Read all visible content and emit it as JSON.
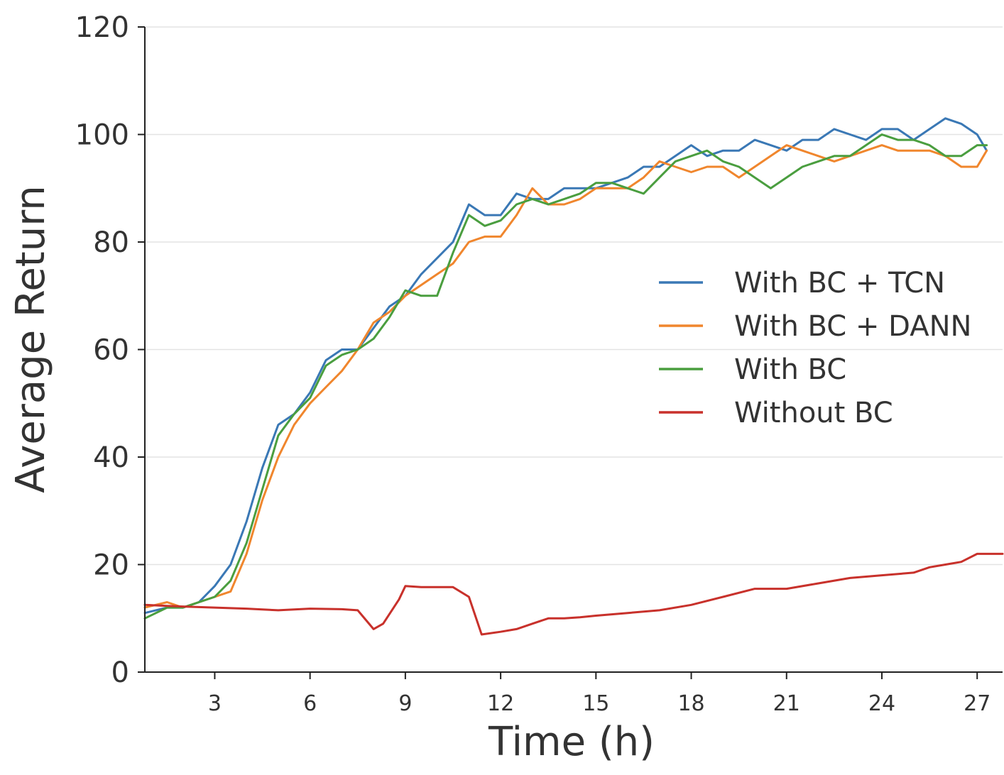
{
  "chart_data": {
    "type": "line",
    "title": "",
    "xlabel": "Time (h)",
    "ylabel": "Average Return",
    "xlim": [
      0.8,
      27.8
    ],
    "ylim": [
      0,
      120
    ],
    "xticks": [
      3,
      6,
      9,
      12,
      15,
      18,
      21,
      24,
      27
    ],
    "xtick_labels": [
      "3",
      "6",
      "9",
      "12",
      "15",
      "18",
      "21",
      "24",
      "27"
    ],
    "yticks": [
      0,
      20,
      40,
      60,
      80,
      100,
      120
    ],
    "ytick_labels": [
      "0",
      "20",
      "40",
      "60",
      "80",
      "100",
      "120"
    ],
    "grid": "horizontal",
    "legend_position": "center-right",
    "series": [
      {
        "name": "With BC + TCN",
        "color": "#3a78b5",
        "x": [
          0.8,
          1.5,
          2.0,
          2.5,
          3.0,
          3.5,
          4.0,
          4.5,
          5.0,
          5.5,
          6.0,
          6.5,
          7.0,
          7.5,
          8.0,
          8.5,
          9.0,
          9.5,
          10.0,
          10.5,
          11.0,
          11.5,
          12.0,
          12.5,
          13.0,
          13.5,
          14.0,
          14.5,
          15.0,
          15.5,
          16.0,
          16.5,
          17.0,
          17.5,
          18.0,
          18.5,
          19.0,
          19.5,
          20.0,
          20.5,
          21.0,
          21.5,
          22.0,
          22.5,
          23.0,
          23.5,
          24.0,
          24.5,
          25.0,
          25.5,
          26.0,
          26.5,
          27.0,
          27.3
        ],
        "y": [
          11,
          12,
          12,
          13,
          16,
          20,
          28,
          38,
          46,
          48,
          52,
          58,
          60,
          60,
          64,
          68,
          70,
          74,
          77,
          80,
          87,
          85,
          85,
          89,
          88,
          88,
          90,
          90,
          90,
          91,
          92,
          94,
          94,
          96,
          98,
          96,
          97,
          97,
          99,
          98,
          97,
          99,
          99,
          101,
          100,
          99,
          101,
          101,
          99,
          101,
          103,
          102,
          100,
          97
        ]
      },
      {
        "name": "With BC + DANN",
        "color": "#f0862d",
        "x": [
          0.8,
          1.5,
          2.0,
          2.5,
          3.0,
          3.5,
          4.0,
          4.5,
          5.0,
          5.5,
          6.0,
          6.5,
          7.0,
          7.5,
          8.0,
          8.5,
          9.0,
          9.5,
          10.0,
          10.5,
          11.0,
          11.5,
          12.0,
          12.5,
          13.0,
          13.5,
          14.0,
          14.5,
          15.0,
          15.5,
          16.0,
          16.5,
          17.0,
          17.5,
          18.0,
          18.5,
          19.0,
          19.5,
          20.0,
          20.5,
          21.0,
          21.5,
          22.0,
          22.5,
          23.0,
          23.5,
          24.0,
          24.5,
          25.0,
          25.5,
          26.0,
          26.5,
          27.0,
          27.3
        ],
        "y": [
          12,
          13,
          12,
          13,
          14,
          15,
          22,
          32,
          40,
          46,
          50,
          53,
          56,
          60,
          65,
          67,
          70,
          72,
          74,
          76,
          80,
          81,
          81,
          85,
          90,
          87,
          87,
          88,
          90,
          90,
          90,
          92,
          95,
          94,
          93,
          94,
          94,
          92,
          94,
          96,
          98,
          97,
          96,
          95,
          96,
          97,
          98,
          97,
          97,
          97,
          96,
          94,
          94,
          97
        ]
      },
      {
        "name": "With BC",
        "color": "#4a9e3f",
        "x": [
          0.8,
          1.5,
          2.0,
          2.5,
          3.0,
          3.5,
          4.0,
          4.5,
          5.0,
          5.5,
          6.0,
          6.5,
          7.0,
          7.5,
          8.0,
          8.5,
          9.0,
          9.5,
          10.0,
          10.5,
          11.0,
          11.5,
          12.0,
          12.5,
          13.0,
          13.5,
          14.0,
          14.5,
          15.0,
          15.5,
          16.0,
          16.5,
          17.0,
          17.5,
          18.0,
          18.5,
          19.0,
          19.5,
          20.0,
          20.5,
          21.0,
          21.5,
          22.0,
          22.5,
          23.0,
          23.5,
          24.0,
          24.5,
          25.0,
          25.5,
          26.0,
          26.5,
          27.0,
          27.3
        ],
        "y": [
          10,
          12,
          12,
          13,
          14,
          17,
          24,
          34,
          44,
          48,
          51,
          57,
          59,
          60,
          62,
          66,
          71,
          70,
          70,
          78,
          85,
          83,
          84,
          87,
          88,
          87,
          88,
          89,
          91,
          91,
          90,
          89,
          92,
          95,
          96,
          97,
          95,
          94,
          92,
          90,
          92,
          94,
          95,
          96,
          96,
          98,
          100,
          99,
          99,
          98,
          96,
          96,
          98,
          98
        ]
      },
      {
        "name": "Without BC",
        "color": "#c8312b",
        "x": [
          0.8,
          1.5,
          2.0,
          3.0,
          4.0,
          5.0,
          6.0,
          7.0,
          7.5,
          8.0,
          8.3,
          8.8,
          9.0,
          9.5,
          10.0,
          10.5,
          11.0,
          11.4,
          12.0,
          12.5,
          13.0,
          13.5,
          14.0,
          14.5,
          15.0,
          16.0,
          17.0,
          18.0,
          19.0,
          20.0,
          21.0,
          22.0,
          23.0,
          24.0,
          25.0,
          25.5,
          26.0,
          26.5,
          27.0,
          27.8
        ],
        "y": [
          12.5,
          12.3,
          12.2,
          12.0,
          11.8,
          11.5,
          11.8,
          11.7,
          11.5,
          8.0,
          9.0,
          13.5,
          16.0,
          15.8,
          15.8,
          15.8,
          14.0,
          7.0,
          7.5,
          8.0,
          9.0,
          10.0,
          10.0,
          10.2,
          10.5,
          11.0,
          11.5,
          12.5,
          14.0,
          15.5,
          15.5,
          16.5,
          17.5,
          18.0,
          18.5,
          19.5,
          20.0,
          20.5,
          22.0,
          22.0
        ]
      }
    ]
  }
}
